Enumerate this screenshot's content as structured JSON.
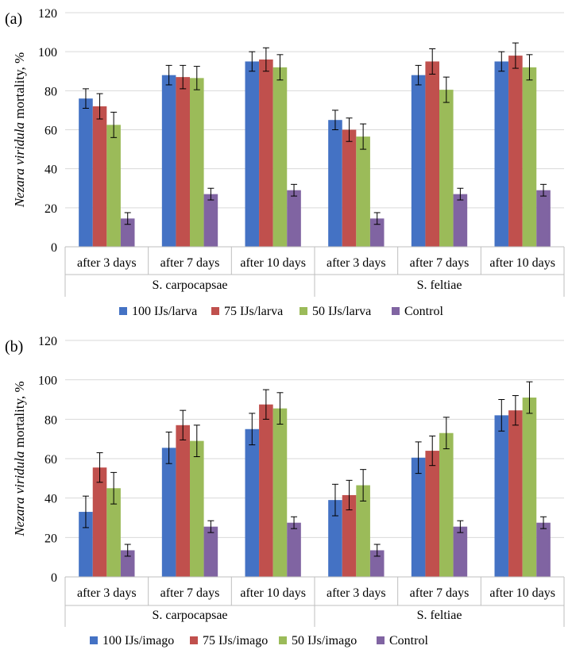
{
  "chart_data": [
    {
      "type": "bar",
      "panel_label": "(a)",
      "ylabel_italic": "Nezara viridula",
      "ylabel_rest": " mortality, %",
      "ylim": [
        0,
        120
      ],
      "yticks": [
        0,
        20,
        40,
        60,
        80,
        100,
        120
      ],
      "grid": true,
      "legend_position": "bottom",
      "groups": [
        "S. carpocapsae",
        "S. feltiae"
      ],
      "categories": [
        "after 3 days",
        "after 7 days",
        "after 10 days",
        "after 3 days",
        "after 7 days",
        "after 10 days"
      ],
      "series": [
        {
          "name": "100 IJs/larva",
          "color": "#4472C4",
          "values": [
            76,
            88,
            95,
            65,
            88,
            95
          ],
          "errors": [
            5,
            5,
            5,
            5,
            5,
            5
          ]
        },
        {
          "name": "75 IJs/larva",
          "color": "#C0504D",
          "values": [
            72,
            87,
            96,
            60,
            95,
            98
          ],
          "errors": [
            6.5,
            6,
            6,
            6,
            6.5,
            6.5
          ]
        },
        {
          "name": "50 IJs/larva",
          "color": "#9BBB59",
          "values": [
            62.5,
            86.5,
            92,
            56.5,
            80.5,
            92
          ],
          "errors": [
            6.5,
            6,
            6.5,
            6.5,
            6.5,
            6.5
          ]
        },
        {
          "name": "Control",
          "color": "#8064A2",
          "values": [
            14.5,
            27,
            29,
            14.5,
            27,
            29
          ],
          "errors": [
            3,
            3,
            3,
            3,
            3,
            3
          ]
        }
      ]
    },
    {
      "type": "bar",
      "panel_label": "(b)",
      "ylabel_italic": "Nezara viridula",
      "ylabel_rest": " mortality, %",
      "ylim": [
        0,
        120
      ],
      "yticks": [
        0,
        20,
        40,
        60,
        80,
        100,
        120
      ],
      "grid": true,
      "legend_position": "bottom",
      "groups": [
        "S. carpocapsae",
        "S. feltiae"
      ],
      "categories": [
        "after 3 days",
        "after 7 days",
        "after 10 days",
        "after 3 days",
        "after 7 days",
        "after 10 days"
      ],
      "series": [
        {
          "name": "100 IJs/imago",
          "color": "#4472C4",
          "values": [
            33,
            65.5,
            75,
            39,
            60.5,
            82
          ],
          "errors": [
            8,
            8,
            8,
            8,
            8,
            8
          ]
        },
        {
          "name": "75 IJs/imago",
          "color": "#C0504D",
          "values": [
            55.5,
            77,
            87.5,
            41.5,
            64,
            84.5
          ],
          "errors": [
            7.5,
            7.5,
            7.5,
            7.5,
            7.5,
            7.5
          ]
        },
        {
          "name": "50 IJs/imago",
          "color": "#9BBB59",
          "values": [
            45,
            69,
            85.5,
            46.5,
            73,
            91
          ],
          "errors": [
            8,
            8,
            8,
            8,
            8,
            8
          ]
        },
        {
          "name": "Control",
          "color": "#8064A2",
          "values": [
            13.5,
            25.5,
            27.5,
            13.5,
            25.5,
            27.5
          ],
          "errors": [
            3,
            3,
            3,
            3,
            3,
            3
          ]
        }
      ]
    }
  ]
}
